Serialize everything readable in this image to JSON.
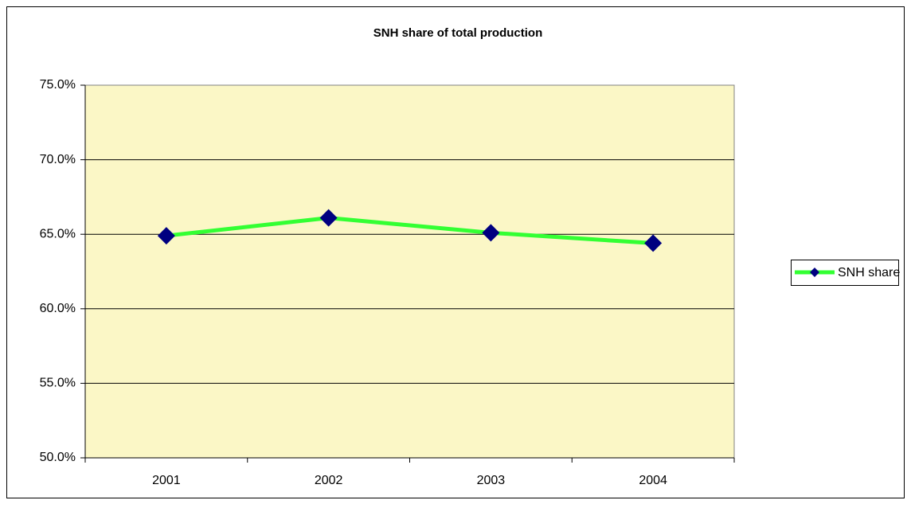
{
  "chart_data": {
    "type": "line",
    "title": "SNH share of total production",
    "categories": [
      "2001",
      "2002",
      "2003",
      "2004"
    ],
    "series": [
      {
        "name": "SNH share",
        "color": "#33ff33",
        "marker_color": "#000080",
        "values": [
          64.9,
          66.1,
          65.1,
          64.4
        ]
      }
    ],
    "ylim": [
      50,
      75
    ],
    "yticks": [
      {
        "value": 50,
        "label": "50.0%"
      },
      {
        "value": 55,
        "label": "55.0%"
      },
      {
        "value": 60,
        "label": "60.0%"
      },
      {
        "value": 65,
        "label": "65.0%"
      },
      {
        "value": 70,
        "label": "70.0%"
      },
      {
        "value": 75,
        "label": "75.0%"
      }
    ],
    "grid": true,
    "legend": "right"
  }
}
